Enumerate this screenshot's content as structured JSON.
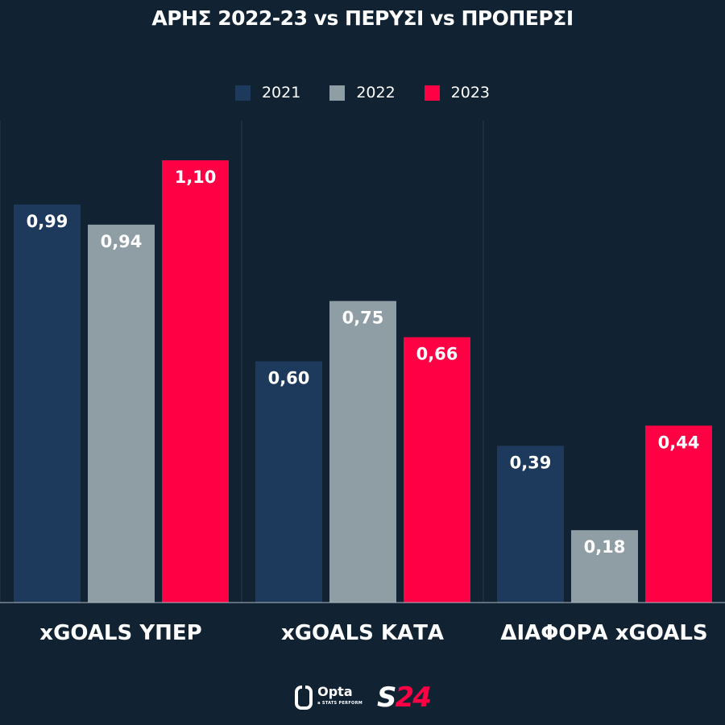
{
  "chart_data": {
    "type": "bar",
    "title": "ΑΡΗΣ 2022-23 vs ΠΕΡΥΣΙ vs ΠΡΟΠΕΡΣΙ",
    "categories": [
      "xGOALS ΥΠΕΡ",
      "xGOALS ΚΑΤΑ",
      "ΔΙΑΦΟΡΑ xGOALS"
    ],
    "series": [
      {
        "name": "2021",
        "color": "#1d3a5c",
        "values": [
          0.99,
          0.6,
          0.39
        ],
        "labels": [
          "0,99",
          "0,60",
          "0,39"
        ]
      },
      {
        "name": "2022",
        "color": "#8f9da5",
        "values": [
          0.94,
          0.75,
          0.18
        ],
        "labels": [
          "0,94",
          "0,75",
          "0,18"
        ]
      },
      {
        "name": "2023",
        "color": "#ff0044",
        "values": [
          1.1,
          0.66,
          0.44
        ],
        "labels": [
          "1,10",
          "0,66",
          "0,44"
        ]
      }
    ],
    "ylim": [
      0,
      1.3
    ],
    "grid": false,
    "legend": "top-center",
    "xlabel": "",
    "ylabel": ""
  },
  "branding": {
    "opta": "Opta",
    "opta_sub": "a STATS PERFORM",
    "s24_s": "S",
    "s24_num": "24"
  },
  "colors": {
    "background": "#112233",
    "separator": "#2a3a4b"
  }
}
